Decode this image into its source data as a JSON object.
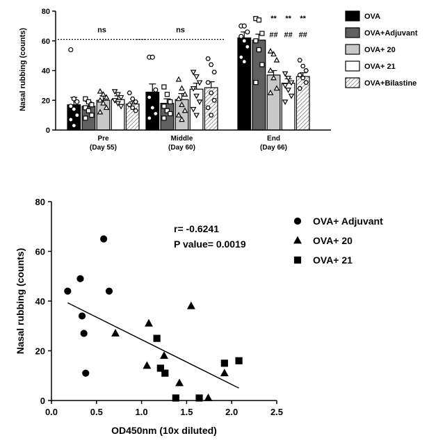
{
  "chart_data": [
    {
      "type": "bar",
      "ylabel": "Nasal rubbing (counts)",
      "ylim": [
        0,
        80
      ],
      "yticks": [
        "0",
        "20",
        "40",
        "60",
        "80"
      ],
      "categories": [
        {
          "line1": "Pre",
          "line2": "(Day 55)"
        },
        {
          "line1": "Middle",
          "line2": "(Day 60)"
        },
        {
          "line1": "End",
          "line2": "(Day 66)"
        }
      ],
      "colors": {
        "ova": "#000000",
        "adjuvant": "#606060",
        "ova20": "#c8c8c8",
        "ova21": "#ffffff",
        "bilastine": "#ffffff"
      },
      "series": [
        {
          "name": "OVA",
          "key": "ova",
          "pattern": "solid-black",
          "marker": "circle",
          "values": [
            17,
            25.5,
            62
          ],
          "errors": [
            5,
            5.5,
            4
          ],
          "points": [
            [
              54,
              21,
              19,
              16,
              14,
              10,
              7,
              3
            ],
            [
              49,
              49,
              27,
              22,
              15,
              11,
              8
            ],
            [
              70,
              70,
              66,
              63,
              60,
              56,
              49,
              46
            ]
          ]
        },
        {
          "name": "OVA+Adjuvant",
          "key": "adjuvant",
          "pattern": "solid-dark",
          "marker": "square",
          "values": [
            16,
            18,
            60.5
          ],
          "errors": [
            3,
            3,
            4
          ],
          "points": [
            [
              21,
              19,
              17,
              15,
              13,
              10,
              8
            ],
            [
              29,
              24,
              19,
              16,
              13,
              11,
              8
            ],
            [
              75,
              74,
              65,
              60,
              54,
              44,
              32
            ]
          ]
        },
        {
          "name": "OVA+ 20",
          "key": "ova20",
          "pattern": "solid-light",
          "marker": "triangle-up",
          "values": [
            20,
            20.5,
            37
          ],
          "errors": [
            3,
            4,
            3
          ],
          "points": [
            [
              26,
              24,
              22,
              20,
              18,
              15,
              12
            ],
            [
              34,
              28,
              24,
              21,
              17,
              13,
              10,
              7
            ],
            [
              53,
              51,
              47,
              40,
              35,
              28,
              25
            ]
          ]
        },
        {
          "name": "OVA+ 21",
          "key": "ova21",
          "pattern": "open-white",
          "marker": "triangle-down",
          "values": [
            20.5,
            27.5,
            31.5
          ],
          "errors": [
            2.5,
            4,
            3
          ],
          "points": [
            [
              26,
              24,
              22,
              20,
              18,
              16
            ],
            [
              39,
              36,
              32,
              28,
              23,
              19,
              14,
              10
            ],
            [
              38,
              35,
              32,
              30,
              27,
              23,
              19
            ]
          ]
        },
        {
          "name": "OVA+Bilastine",
          "key": "bilastine",
          "pattern": "hatched",
          "marker": "hexagon",
          "values": [
            17.5,
            28.5,
            36
          ],
          "errors": [
            1.5,
            4,
            2.5
          ],
          "points": [
            [
              25,
              21,
              19,
              17,
              15,
              13
            ],
            [
              48,
              44,
              39,
              32,
              25,
              20,
              15,
              10
            ],
            [
              47,
              43,
              40,
              37,
              35,
              32,
              28
            ]
          ]
        }
      ],
      "annotations": {
        "ns_label": "ns",
        "stars_label": "**",
        "hash_label": "##"
      }
    },
    {
      "type": "scatter",
      "xlabel": "OD450nm (10x diluted)",
      "ylabel": "Nasal rubbing (counts)",
      "xlim": [
        0.0,
        2.5
      ],
      "ylim": [
        0,
        80
      ],
      "xticks": [
        "0.0",
        "0.5",
        "1.0",
        "1.5",
        "2.0",
        "2.5"
      ],
      "yticks": [
        "0",
        "20",
        "40",
        "60",
        "80"
      ],
      "regression": {
        "x": [
          0.18,
          2.08
        ],
        "y": [
          39.3,
          5.0
        ]
      },
      "stats": {
        "r_text": "r= -0.6241",
        "p_text": "P value= 0.0019"
      },
      "series": [
        {
          "name": "OVA+ Adjuvant",
          "marker": "circle",
          "x": [
            0.18,
            0.32,
            0.34,
            0.36,
            0.38,
            0.58,
            0.64
          ],
          "y": [
            44,
            49,
            34,
            27,
            11,
            65,
            44
          ]
        },
        {
          "name": "OVA+ 20",
          "marker": "triangle",
          "x": [
            0.71,
            1.06,
            1.08,
            1.25,
            1.55,
            1.42,
            1.92,
            1.74
          ],
          "y": [
            27,
            14,
            31,
            18,
            38,
            7,
            11,
            1
          ]
        },
        {
          "name": "OVA+ 21",
          "marker": "square",
          "x": [
            1.17,
            1.21,
            1.26,
            1.38,
            1.64,
            1.92,
            2.08
          ],
          "y": [
            25,
            13,
            11,
            1,
            1,
            15,
            16
          ]
        }
      ]
    }
  ]
}
